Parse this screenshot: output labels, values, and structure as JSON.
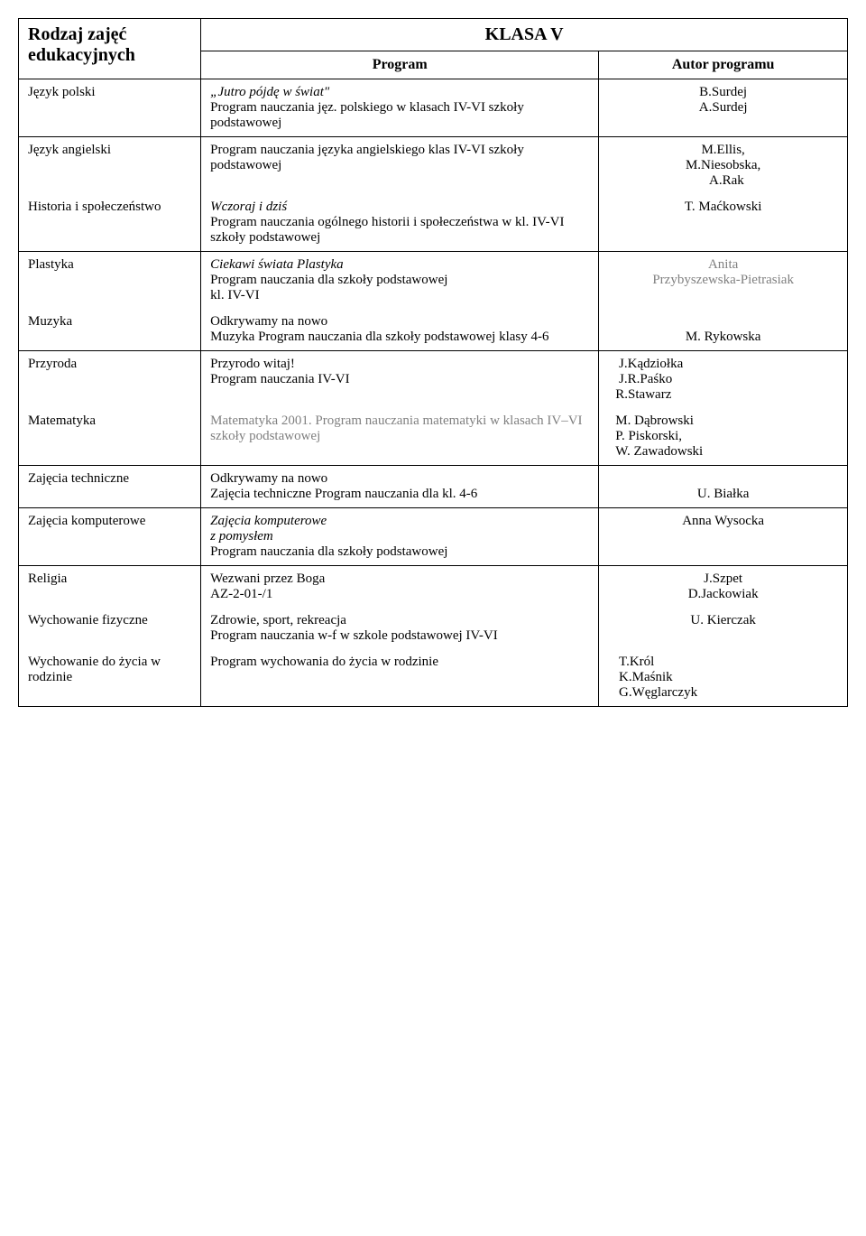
{
  "headers": {
    "left": "Rodzaj zajęć edukacyjnych",
    "title": "KLASA V",
    "program": "Program",
    "author": "Autor programu"
  },
  "rows": {
    "r1": {
      "subject": "Język polski",
      "prog_italic": "„Jutro pójdę w świat\"",
      "prog_rest": "Program nauczania jęz. polskiego w klasach IV-VI szkoły podstawowej",
      "a1": "B.Surdej",
      "a2": "A.Surdej"
    },
    "r2": {
      "subject": "Język angielski",
      "prog": "Program nauczania języka angielskiego klas IV-VI szkoły podstawowej",
      "a1": "M.Ellis,",
      "a2": "M.Niesobska,",
      "a3": "A.Rak"
    },
    "r3": {
      "subject": "Historia i społeczeństwo",
      "prog_italic": "Wczoraj i dziś",
      "prog_rest": "Program nauczania ogólnego historii i społeczeństwa w kl. IV-VI szkoły podstawowej",
      "a1": "T. Maćkowski"
    },
    "r4": {
      "subject": "Plastyka",
      "prog_italic": "Ciekawi świata Plastyka",
      "prog_rest": "Program nauczania dla szkoły podstawowej",
      "prog_line3": " kl. IV-VI",
      "a1": "Anita",
      "a2": "Przybyszewska-Pietrasiak"
    },
    "r5": {
      "subject": "Muzyka",
      "prog_l1": "Odkrywamy na nowo",
      "prog_l2": "Muzyka Program nauczania dla szkoły podstawowej  klasy  4-6",
      "a1": "M. Rykowska"
    },
    "r6": {
      "subject": "Przyroda",
      "prog_l1": "Przyrodo witaj!",
      "prog_l2": "Program nauczania IV-VI",
      "a1": "J.Kądziołka",
      "a2": "J.R.Paśko",
      "a3": "R.Stawarz"
    },
    "r7": {
      "subject": "Matematyka",
      "prog": "Matematyka 2001. Program nauczania matematyki w klasach IV–VI szkoły podstawowej",
      "a1": "M. Dąbrowski",
      "a2": "P. Piskorski,",
      "a3": "W. Zawadowski"
    },
    "r8": {
      "subject": "Zajęcia techniczne",
      "prog_l1": "Odkrywamy na nowo",
      "prog_l2": "Zajęcia techniczne Program nauczania dla kl. 4-6",
      "a1": "U. Białka"
    },
    "r9": {
      "subject": "Zajęcia komputerowe",
      "prog_italic": "Zajęcia komputerowe",
      "prog_italic2": " z pomysłem",
      "prog_rest": "Program nauczania dla szkoły podstawowej",
      "a1": "Anna Wysocka"
    },
    "r10": {
      "subject": "Religia",
      "prog_l1": "Wezwani przez Boga",
      "prog_l2": "AZ-2-01-/1",
      "a1": "J.Szpet",
      "a2": "D.Jackowiak"
    },
    "r11": {
      "subject": "Wychowanie fizyczne",
      "prog_l1": "Zdrowie, sport, rekreacja",
      "prog_l2": "Program nauczania w-f   w szkole podstawowej IV-VI",
      "a1": "U. Kierczak"
    },
    "r12": {
      "subject": "Wychowanie do życia w rodzinie",
      "prog": "Program wychowania do życia w rodzinie",
      "a1": "T.Król",
      "a2": "K.Maśnik",
      "a3": "G.Węglarczyk"
    }
  }
}
